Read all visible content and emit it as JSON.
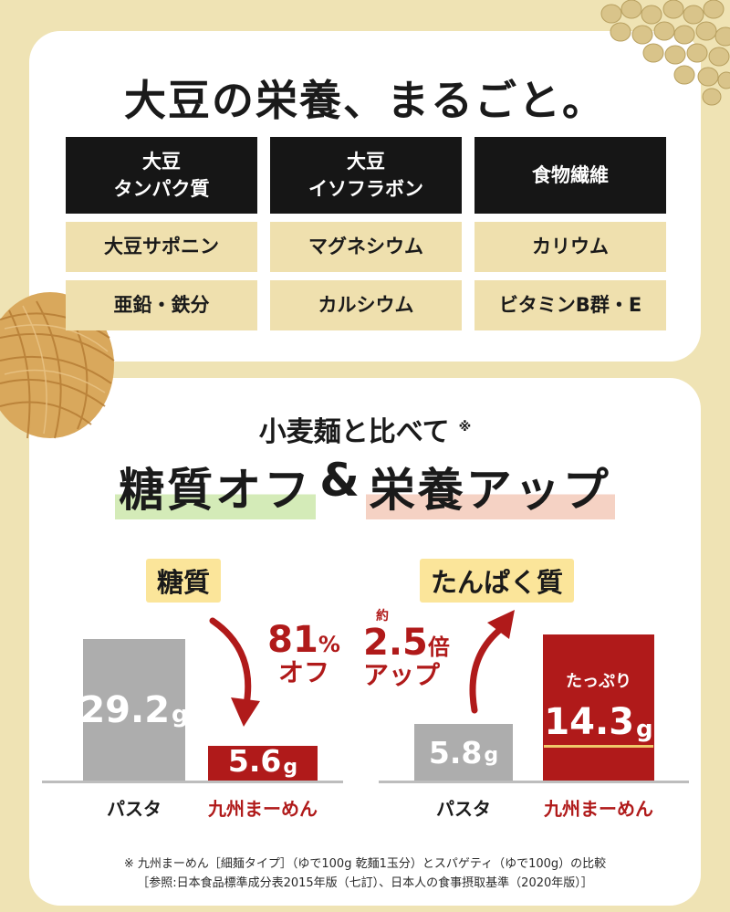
{
  "headline": "大豆の栄養、まるごと。",
  "nutrients": {
    "header_row": [
      "大豆\nタンパク質",
      "大豆\nイソフラボン",
      "食物繊維"
    ],
    "row2": [
      "大豆サポニン",
      "マグネシウム",
      "カリウム"
    ],
    "row3": [
      "亜鉛・鉄分",
      "カルシウム",
      "ビタミンB群・E"
    ]
  },
  "comparison": {
    "heading": "小麦麺と比べて",
    "heading_mark": "※",
    "tagline_part1": "糖質オフ",
    "tagline_amp": "&",
    "tagline_part2": "栄養アップ"
  },
  "carbs": {
    "label": "糖質",
    "pasta": {
      "value": "29.2",
      "unit": "g",
      "amount": 29.2,
      "name": "パスタ"
    },
    "kyushu": {
      "value": "5.6",
      "unit": "g",
      "amount": 5.6,
      "name": "九州まーめん"
    },
    "callout_number": "81",
    "callout_percent": "%",
    "callout_word": "オフ"
  },
  "protein": {
    "label": "たんぱく質",
    "pasta": {
      "value": "5.8",
      "unit": "g",
      "amount": 5.8,
      "name": "パスタ"
    },
    "kyushu": {
      "value": "14.3",
      "unit": "g",
      "amount": 14.3,
      "name": "九州まーめん",
      "note": "たっぷり"
    },
    "callout_about": "約",
    "callout_number": "2.5",
    "callout_times": "倍",
    "callout_word": "アップ"
  },
  "footnote": {
    "line1": "※ 九州まーめん［細麺タイプ］（ゆで100g 乾麺1玉分）とスパゲティ（ゆで100g）の比較",
    "line2": "［参照:日本食品標準成分表2015年版（七訂）、日本人の食事摂取基準（2020年版）］"
  },
  "colors": {
    "background": "#efe3b4",
    "accent_red": "#b01a1a",
    "bar_gray": "#adadad",
    "cell_dark": "#161616",
    "cell_light": "#efe0ae",
    "label_yellow": "#fbe59a"
  },
  "icons": {
    "soybeans": "soybeans-photo",
    "noodles": "noodle-nest-photo",
    "arrow_down": "curved-arrow-down-icon",
    "arrow_up": "curved-arrow-up-icon"
  }
}
